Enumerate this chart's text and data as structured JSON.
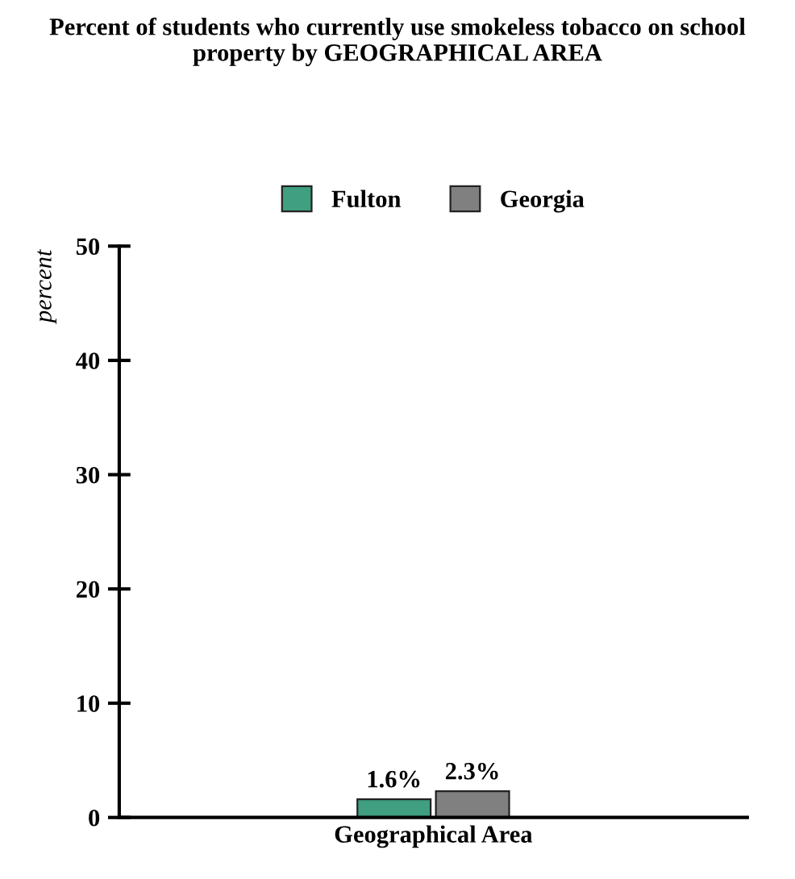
{
  "chart_data": {
    "type": "bar",
    "title": "Percent of students who currently use smokeless tobacco on school property by GEOGRAPHICAL AREA",
    "categories": [
      "Geographical Area"
    ],
    "series": [
      {
        "name": "Fulton",
        "color": "#3f9f80",
        "values": [
          1.6
        ],
        "value_labels": [
          "1.6%"
        ]
      },
      {
        "name": "Georgia",
        "color": "#808080",
        "values": [
          2.3
        ],
        "value_labels": [
          "2.3%"
        ]
      }
    ],
    "ylabel": "percent",
    "ylim": [
      0,
      50
    ],
    "yticks": [
      0,
      10,
      20,
      30,
      40,
      50
    ],
    "grid": false,
    "legend": "top"
  }
}
